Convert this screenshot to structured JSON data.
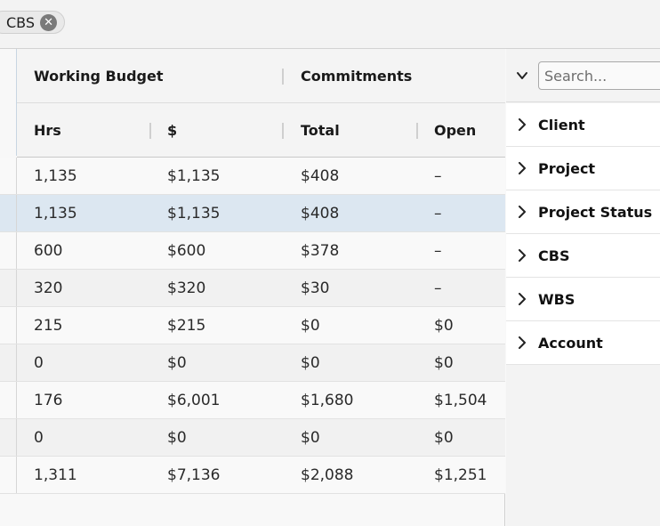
{
  "filter_chip": {
    "label": "CBS"
  },
  "grid": {
    "group_headers": [
      "Working Budget",
      "Commitments"
    ],
    "columns": [
      "Hrs",
      "$",
      "Total",
      "Open"
    ],
    "rows": [
      {
        "hrs": "1,135",
        "dollars": "$1,135",
        "total": "$408",
        "open": "–"
      },
      {
        "hrs": "1,135",
        "dollars": "$1,135",
        "total": "$408",
        "open": "–"
      },
      {
        "hrs": "600",
        "dollars": "$600",
        "total": "$378",
        "open": "–"
      },
      {
        "hrs": "320",
        "dollars": "$320",
        "total": "$30",
        "open": "–"
      },
      {
        "hrs": "215",
        "dollars": "$215",
        "total": "$0",
        "open": "$0"
      },
      {
        "hrs": "0",
        "dollars": "$0",
        "total": "$0",
        "open": "$0"
      },
      {
        "hrs": "176",
        "dollars": "$6,001",
        "total": "$1,680",
        "open": "$1,504"
      },
      {
        "hrs": "0",
        "dollars": "$0",
        "total": "$0",
        "open": "$0"
      },
      {
        "hrs": "1,311",
        "dollars": "$7,136",
        "total": "$2,088",
        "open": "$1,251"
      }
    ]
  },
  "panel": {
    "search_placeholder": "Search...",
    "items": [
      "Client",
      "Project",
      "Project Status",
      "CBS",
      "WBS",
      "Account"
    ]
  }
}
